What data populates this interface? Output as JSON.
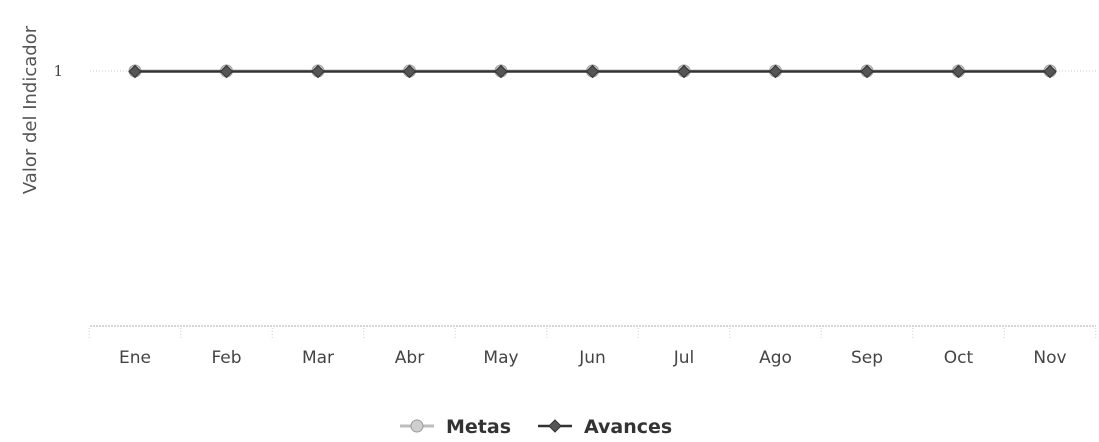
{
  "chart_data": {
    "type": "line",
    "title": "",
    "xlabel": "",
    "ylabel": "Valor del Indicador",
    "categories": [
      "Ene",
      "Feb",
      "Mar",
      "Abr",
      "May",
      "Jun",
      "Jul",
      "Ago",
      "Sep",
      "Oct",
      "Nov"
    ],
    "yticks": [
      1
    ],
    "ylim": [
      0,
      1.2
    ],
    "grid": true,
    "legend_position": "bottom",
    "series": [
      {
        "name": "Metas",
        "color": "#bdbdbd",
        "values": [
          1,
          1,
          1,
          1,
          1,
          1,
          1,
          1,
          1,
          1,
          1
        ]
      },
      {
        "name": "Avances",
        "color": "#333333",
        "values": [
          1,
          1,
          1,
          1,
          1,
          1,
          1,
          1,
          1,
          1,
          1
        ]
      }
    ]
  }
}
